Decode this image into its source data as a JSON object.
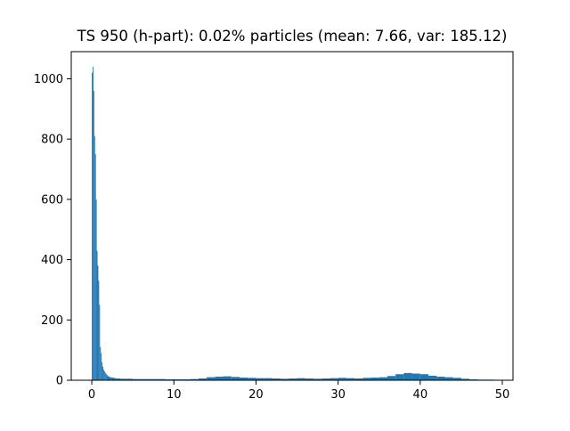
{
  "chart_data": {
    "type": "bar",
    "title": "TS 950 (h-part): 0.02% particles (mean: 7.66, var: 185.12)",
    "xlabel": "",
    "ylabel": "",
    "xlim": [
      -2.5,
      51.3
    ],
    "ylim": [
      0,
      1090
    ],
    "xticks": [
      0,
      10,
      20,
      30,
      40,
      50
    ],
    "yticks": [
      0,
      200,
      400,
      600,
      800,
      1000
    ],
    "x_tick_labels": [
      "0",
      "10",
      "20",
      "30",
      "40",
      "50"
    ],
    "y_tick_labels": [
      "0",
      "200",
      "400",
      "600",
      "800",
      "1000"
    ],
    "grid": false,
    "legend": "none",
    "series": [
      {
        "color": "#1f77b4",
        "bin_width": 0.1,
        "bins_start": [
          0.0,
          0.1,
          0.2,
          0.3,
          0.4,
          0.5,
          0.6,
          0.7,
          0.8,
          0.9,
          1.0,
          1.1,
          1.2,
          1.3,
          1.4,
          1.5,
          1.6,
          1.7,
          1.8,
          1.9,
          2.0,
          2.2,
          2.4,
          2.6,
          2.8,
          3.0,
          3.5,
          4.0,
          5.0,
          6.0,
          7.0,
          8.0,
          9.0,
          10.0,
          11.0,
          12.0,
          13.0,
          14.0,
          15.0,
          16.0,
          17.0,
          18.0,
          19.0,
          20.0,
          21.0,
          22.0,
          23.0,
          24.0,
          25.0,
          26.0,
          27.0,
          28.0,
          29.0,
          30.0,
          31.0,
          32.0,
          33.0,
          34.0,
          35.0,
          36.0,
          37.0,
          38.0,
          39.0,
          40.0,
          41.0,
          42.0,
          43.0,
          44.0,
          45.0,
          46.0,
          47.0,
          48.0,
          49.0
        ],
        "values": [
          1020,
          1040,
          960,
          810,
          750,
          600,
          430,
          380,
          330,
          250,
          110,
          90,
          60,
          45,
          35,
          30,
          25,
          22,
          18,
          15,
          12,
          10,
          9,
          8,
          7,
          6,
          5,
          5,
          4,
          4,
          4,
          4,
          3,
          3,
          3,
          4,
          6,
          10,
          12,
          13,
          11,
          9,
          8,
          7,
          7,
          6,
          5,
          6,
          7,
          6,
          5,
          6,
          7,
          8,
          7,
          6,
          8,
          9,
          10,
          14,
          20,
          24,
          22,
          20,
          15,
          12,
          10,
          8,
          5,
          3,
          2,
          2,
          1
        ]
      }
    ]
  }
}
